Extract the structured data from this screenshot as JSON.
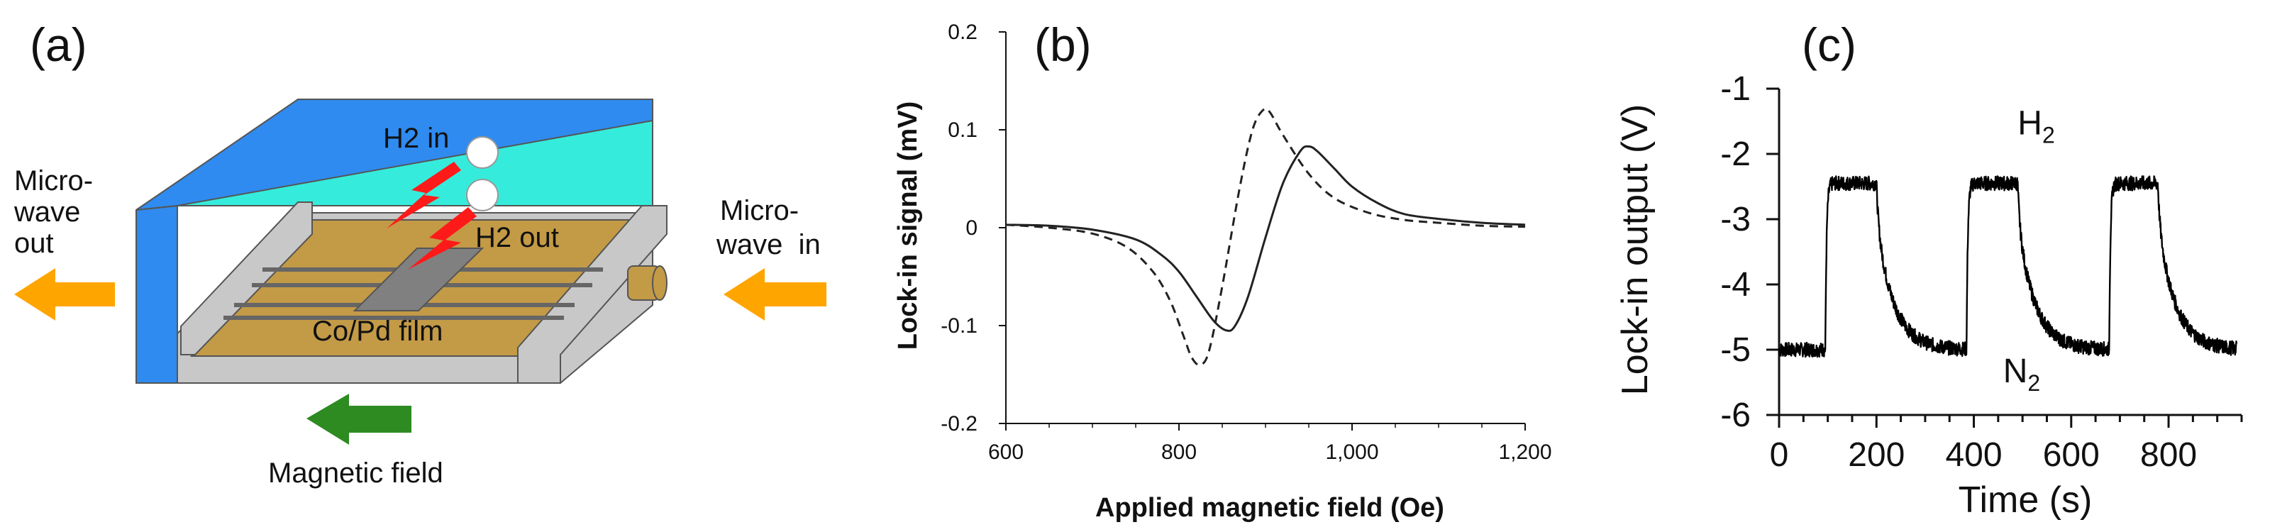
{
  "figure": {
    "panel_a": {
      "letter": "(a)",
      "labels": {
        "h2_in": "H2 in",
        "h2_out": "H2 out",
        "film": "Co/Pd film",
        "microwave_out": [
          "Micro-",
          "wave",
          "out"
        ],
        "microwave_in": [
          "Micro-",
          "wave  in"
        ],
        "magnetic_field": "Magnetic field"
      },
      "colors": {
        "cavity_blue": "#2f8bef",
        "cavity_cyan": "#35ecdc",
        "film_gold": "#c39a46",
        "rail_gray": "#c8c8c8",
        "sample_gray": "#808080",
        "arrow_orange": "#ffa500",
        "arrow_green": "#2e8b22",
        "bolt_red": "#ff1a1a"
      }
    },
    "panel_b": {
      "letter": "(b)"
    },
    "panel_c": {
      "letter": "(c)"
    }
  },
  "chart_data": [
    {
      "id": "b",
      "type": "line",
      "title": "",
      "xlabel": "Applied magnetic field (Oe)",
      "ylabel": "Lock-in signal (mV)",
      "xlim": [
        600,
        1200
      ],
      "ylim": [
        -0.2,
        0.2
      ],
      "xticks": [
        600,
        800,
        1000,
        1200
      ],
      "xtick_labels": [
        "600",
        "800",
        "1,000",
        "1,200"
      ],
      "yticks": [
        -0.2,
        -0.1,
        0,
        0.1,
        0.2
      ],
      "ytick_labels": [
        "-0.2",
        "-0.1",
        "0",
        "0.1",
        "0.2"
      ],
      "series": [
        {
          "name": "solid",
          "style": "solid",
          "x": [
            600,
            650,
            700,
            750,
            780,
            800,
            820,
            840,
            855,
            865,
            880,
            900,
            920,
            940,
            950,
            960,
            980,
            1000,
            1030,
            1060,
            1100,
            1150,
            1200
          ],
          "y": [
            0.003,
            0.002,
            -0.002,
            -0.012,
            -0.028,
            -0.045,
            -0.07,
            -0.095,
            -0.105,
            -0.1,
            -0.07,
            -0.01,
            0.045,
            0.078,
            0.083,
            0.078,
            0.06,
            0.042,
            0.025,
            0.014,
            0.009,
            0.005,
            0.003
          ]
        },
        {
          "name": "dashed",
          "style": "dashed",
          "x": [
            600,
            650,
            700,
            740,
            770,
            790,
            805,
            815,
            825,
            835,
            850,
            870,
            885,
            897,
            905,
            920,
            950,
            980,
            1020,
            1060,
            1100,
            1150,
            1200
          ],
          "y": [
            0.003,
            0.0,
            -0.006,
            -0.02,
            -0.045,
            -0.075,
            -0.11,
            -0.133,
            -0.14,
            -0.125,
            -0.06,
            0.04,
            0.1,
            0.12,
            0.118,
            0.095,
            0.055,
            0.03,
            0.015,
            0.008,
            0.005,
            0.002,
            0.001
          ]
        }
      ]
    },
    {
      "id": "c",
      "type": "line",
      "title": "",
      "xlabel": "Time (s)",
      "ylabel": "Lock-in output (V)",
      "xlim": [
        0,
        950
      ],
      "ylim": [
        -6,
        -1
      ],
      "xticks": [
        0,
        200,
        400,
        600,
        800
      ],
      "xtick_labels": [
        "0",
        "200",
        "400",
        "600",
        "800"
      ],
      "yticks": [
        -6,
        -5,
        -4,
        -3,
        -2,
        -1
      ],
      "ytick_labels": [
        "-6",
        "-5",
        "-4",
        "-3",
        "-2",
        "-1"
      ],
      "annotations": [
        {
          "text": "H",
          "sub": "2",
          "x": 490,
          "y": -1.7
        },
        {
          "text": "N",
          "sub": "2",
          "x": 460,
          "y": -5.5
        }
      ],
      "series": [
        {
          "name": "lock-in output",
          "style": "solid",
          "h2_on_times": [
            95,
            385,
            678
          ],
          "h2_durations": [
            105,
            105,
            100
          ],
          "high_level": -2.45,
          "low_level": -5.0,
          "recovery_tau_s": 35,
          "t_end": 940
        }
      ]
    }
  ]
}
